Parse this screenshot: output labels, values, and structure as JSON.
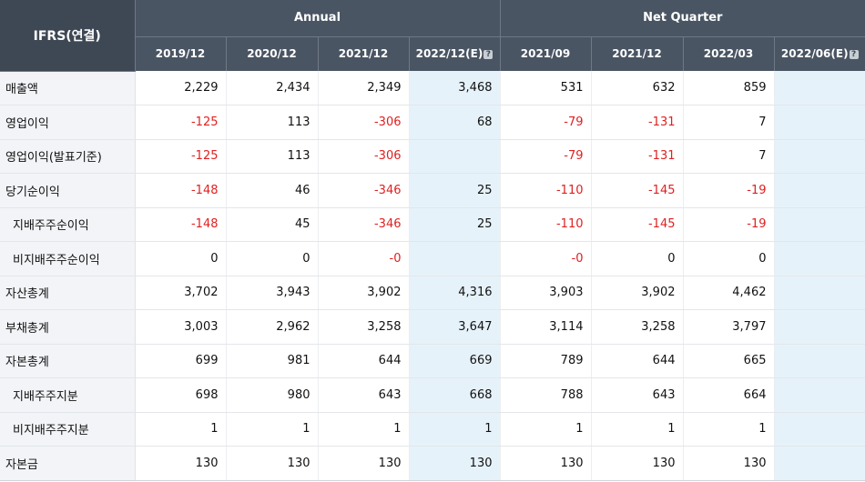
{
  "header": {
    "corner": "IFRS(연결)",
    "groups": [
      {
        "label": "Annual"
      },
      {
        "label": "Net Quarter"
      }
    ],
    "periods": [
      {
        "label": "2019/12",
        "estimate": false
      },
      {
        "label": "2020/12",
        "estimate": false
      },
      {
        "label": "2021/12",
        "estimate": false
      },
      {
        "label": "2022/12(E)",
        "estimate": true
      },
      {
        "label": "2021/09",
        "estimate": false
      },
      {
        "label": "2021/12",
        "estimate": false
      },
      {
        "label": "2022/03",
        "estimate": false
      },
      {
        "label": "2022/06(E)",
        "estimate": true
      }
    ],
    "help_glyph": "?"
  },
  "rows": [
    {
      "label": "매출액",
      "sub": false,
      "values": [
        "2,229",
        "2,434",
        "2,349",
        "3,468",
        "531",
        "632",
        "859",
        ""
      ]
    },
    {
      "label": "영업이익",
      "sub": false,
      "values": [
        "-125",
        "113",
        "-306",
        "68",
        "-79",
        "-131",
        "7",
        ""
      ]
    },
    {
      "label": "영업이익(발표기준)",
      "sub": false,
      "values": [
        "-125",
        "113",
        "-306",
        "",
        "-79",
        "-131",
        "7",
        ""
      ]
    },
    {
      "label": "당기순이익",
      "sub": false,
      "values": [
        "-148",
        "46",
        "-346",
        "25",
        "-110",
        "-145",
        "-19",
        ""
      ]
    },
    {
      "label": "지배주주순이익",
      "sub": true,
      "values": [
        "-148",
        "45",
        "-346",
        "25",
        "-110",
        "-145",
        "-19",
        ""
      ]
    },
    {
      "label": "비지배주주순이익",
      "sub": true,
      "values": [
        "0",
        "0",
        "-0",
        "",
        "-0",
        "0",
        "0",
        ""
      ]
    },
    {
      "label": "자산총계",
      "sub": false,
      "values": [
        "3,702",
        "3,943",
        "3,902",
        "4,316",
        "3,903",
        "3,902",
        "4,462",
        ""
      ]
    },
    {
      "label": "부채총계",
      "sub": false,
      "values": [
        "3,003",
        "2,962",
        "3,258",
        "3,647",
        "3,114",
        "3,258",
        "3,797",
        ""
      ]
    },
    {
      "label": "자본총계",
      "sub": false,
      "values": [
        "699",
        "981",
        "644",
        "669",
        "789",
        "644",
        "665",
        ""
      ]
    },
    {
      "label": "지배주주지분",
      "sub": true,
      "values": [
        "698",
        "980",
        "643",
        "668",
        "788",
        "643",
        "664",
        ""
      ]
    },
    {
      "label": "비지배주주지분",
      "sub": true,
      "values": [
        "1",
        "1",
        "1",
        "1",
        "1",
        "1",
        "1",
        ""
      ]
    },
    {
      "label": "자본금",
      "sub": false,
      "values": [
        "130",
        "130",
        "130",
        "130",
        "130",
        "130",
        "130",
        ""
      ]
    }
  ]
}
